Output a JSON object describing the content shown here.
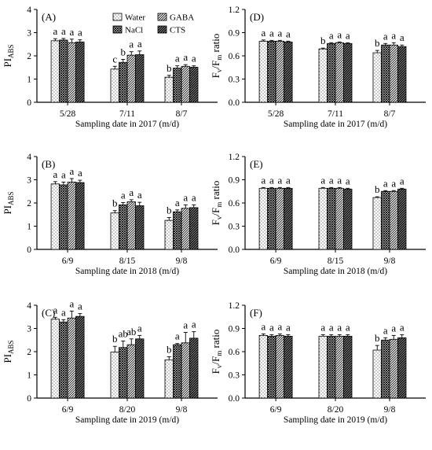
{
  "series_names": [
    "Water",
    "GABA",
    "NaCl",
    "CTS"
  ],
  "chart_data": [
    {
      "type": "bar",
      "panel": "(A)",
      "ylabel": "PI_ABS",
      "xlabel": "Sampling date in 2017 (m/d)",
      "ylim": [
        0,
        4
      ],
      "yticks": [
        "0",
        "1",
        "2",
        "3",
        "4"
      ],
      "legend": true,
      "categories": [
        "5/28",
        "7/11",
        "8/7"
      ],
      "series": [
        {
          "name": "Water",
          "values": [
            2.65,
            1.43,
            1.08
          ],
          "errors": [
            0.09,
            0.12,
            0.08
          ],
          "sig": [
            "a",
            "c",
            "b"
          ]
        },
        {
          "name": "NaCl",
          "values": [
            2.68,
            1.72,
            1.47
          ],
          "errors": [
            0.07,
            0.13,
            0.1
          ],
          "sig": [
            "a",
            "b",
            "a"
          ]
        },
        {
          "name": "GABA",
          "values": [
            2.57,
            2.03,
            1.55
          ],
          "errors": [
            0.15,
            0.15,
            0.07
          ],
          "sig": [
            "a",
            "a",
            "a"
          ]
        },
        {
          "name": "CTS",
          "values": [
            2.6,
            2.05,
            1.51
          ],
          "errors": [
            0.09,
            0.16,
            0.06
          ],
          "sig": [
            "a",
            "a",
            "a"
          ]
        }
      ]
    },
    {
      "type": "bar",
      "panel": "(D)",
      "ylabel": "Fv/Fm ratio",
      "xlabel": "Sampling date in 2017 (m/d)",
      "ylim": [
        0,
        1.2
      ],
      "yticks": [
        "0.0",
        "0.3",
        "0.6",
        "0.9",
        "1.2"
      ],
      "legend": false,
      "categories": [
        "5/28",
        "7/11",
        "8/7"
      ],
      "series": [
        {
          "name": "Water",
          "values": [
            0.79,
            0.69,
            0.64
          ],
          "errors": [
            0.015,
            0.01,
            0.03
          ],
          "sig": [
            "a",
            "b",
            "b"
          ]
        },
        {
          "name": "NaCl",
          "values": [
            0.79,
            0.76,
            0.74
          ],
          "errors": [
            0.01,
            0.01,
            0.02
          ],
          "sig": [
            "a",
            "a",
            "a"
          ]
        },
        {
          "name": "GABA",
          "values": [
            0.79,
            0.77,
            0.74
          ],
          "errors": [
            0.01,
            0.01,
            0.03
          ],
          "sig": [
            "a",
            "a",
            "a"
          ]
        },
        {
          "name": "CTS",
          "values": [
            0.78,
            0.76,
            0.72
          ],
          "errors": [
            0.01,
            0.01,
            0.02
          ],
          "sig": [
            "a",
            "a",
            "a"
          ]
        }
      ]
    },
    {
      "type": "bar",
      "panel": "(B)",
      "ylabel": "PI_ABS",
      "xlabel": "Sampling date in 2018 (m/d)",
      "ylim": [
        0,
        4
      ],
      "yticks": [
        "0",
        "1",
        "2",
        "3",
        "4"
      ],
      "legend": false,
      "categories": [
        "6/9",
        "8/15",
        "9/8"
      ],
      "series": [
        {
          "name": "Water",
          "values": [
            2.82,
            1.57,
            1.25
          ],
          "errors": [
            0.1,
            0.1,
            0.12
          ],
          "sig": [
            "a",
            "b",
            "b"
          ]
        },
        {
          "name": "NaCl",
          "values": [
            2.78,
            1.92,
            1.62
          ],
          "errors": [
            0.12,
            0.1,
            0.08
          ],
          "sig": [
            "a",
            "a",
            "a"
          ]
        },
        {
          "name": "GABA",
          "values": [
            2.9,
            2.05,
            1.77
          ],
          "errors": [
            0.15,
            0.09,
            0.15
          ],
          "sig": [
            "a",
            "a",
            "a"
          ]
        },
        {
          "name": "CTS",
          "values": [
            2.88,
            1.88,
            1.8
          ],
          "errors": [
            0.1,
            0.15,
            0.12
          ],
          "sig": [
            "a",
            "a",
            "a"
          ]
        }
      ]
    },
    {
      "type": "bar",
      "panel": "(E)",
      "ylabel": "Fv/Fm ratio",
      "xlabel": "Sampling date in 2018 (m/d)",
      "ylim": [
        0,
        1.2
      ],
      "yticks": [
        "0.0",
        "0.3",
        "0.6",
        "0.9",
        "1.2"
      ],
      "legend": false,
      "categories": [
        "6/9",
        "8/15",
        "9/8"
      ],
      "series": [
        {
          "name": "Water",
          "values": [
            0.79,
            0.79,
            0.67
          ],
          "errors": [
            0.01,
            0.01,
            0.01
          ],
          "sig": [
            "a",
            "a",
            "b"
          ]
        },
        {
          "name": "NaCl",
          "values": [
            0.79,
            0.79,
            0.75
          ],
          "errors": [
            0.01,
            0.01,
            0.01
          ],
          "sig": [
            "a",
            "a",
            "a"
          ]
        },
        {
          "name": "GABA",
          "values": [
            0.79,
            0.79,
            0.75
          ],
          "errors": [
            0.01,
            0.01,
            0.01
          ],
          "sig": [
            "a",
            "a",
            "a"
          ]
        },
        {
          "name": "CTS",
          "values": [
            0.79,
            0.78,
            0.78
          ],
          "errors": [
            0.01,
            0.01,
            0.01
          ],
          "sig": [
            "a",
            "a",
            "a"
          ]
        }
      ]
    },
    {
      "type": "bar",
      "panel": "(C)",
      "ylabel": "PI_ABS",
      "xlabel": "Sampling date in 2019 (m/d)",
      "ylim": [
        0,
        4
      ],
      "yticks": [
        "0",
        "1",
        "2",
        "3",
        "4"
      ],
      "legend": false,
      "categories": [
        "6/9",
        "8/20",
        "9/8"
      ],
      "series": [
        {
          "name": "Water",
          "values": [
            3.4,
            1.98,
            1.65
          ],
          "errors": [
            0.08,
            0.25,
            0.13
          ],
          "sig": [
            "a",
            "b",
            "b"
          ]
        },
        {
          "name": "NaCl",
          "values": [
            3.28,
            2.18,
            2.3
          ],
          "errors": [
            0.1,
            0.28,
            0.05
          ],
          "sig": [
            "a",
            "ab",
            "a"
          ]
        },
        {
          "name": "GABA",
          "values": [
            3.45,
            2.3,
            2.38
          ],
          "errors": [
            0.3,
            0.25,
            0.45
          ],
          "sig": [
            "a",
            "ab",
            "a"
          ]
        },
        {
          "name": "CTS",
          "values": [
            3.52,
            2.55,
            2.58
          ],
          "errors": [
            0.12,
            0.15,
            0.28
          ],
          "sig": [
            "a",
            "a",
            "a"
          ]
        }
      ]
    },
    {
      "type": "bar",
      "panel": "(F)",
      "ylabel": "Fv/Fm ratio",
      "xlabel": "Sampling date in 2019 (m/d)",
      "ylim": [
        0,
        1.2
      ],
      "yticks": [
        "0.0",
        "0.3",
        "0.6",
        "0.9",
        "1.2"
      ],
      "legend": false,
      "categories": [
        "6/9",
        "8/20",
        "9/8"
      ],
      "series": [
        {
          "name": "Water",
          "values": [
            0.81,
            0.8,
            0.62
          ],
          "errors": [
            0.02,
            0.02,
            0.06
          ],
          "sig": [
            "a",
            "a",
            "b"
          ]
        },
        {
          "name": "NaCl",
          "values": [
            0.8,
            0.8,
            0.75
          ],
          "errors": [
            0.02,
            0.02,
            0.03
          ],
          "sig": [
            "a",
            "a",
            "a"
          ]
        },
        {
          "name": "GABA",
          "values": [
            0.81,
            0.8,
            0.76
          ],
          "errors": [
            0.02,
            0.02,
            0.05
          ],
          "sig": [
            "a",
            "a",
            "a"
          ]
        },
        {
          "name": "CTS",
          "values": [
            0.8,
            0.8,
            0.78
          ],
          "errors": [
            0.02,
            0.02,
            0.04
          ],
          "sig": [
            "a",
            "a",
            "a"
          ]
        }
      ]
    }
  ]
}
